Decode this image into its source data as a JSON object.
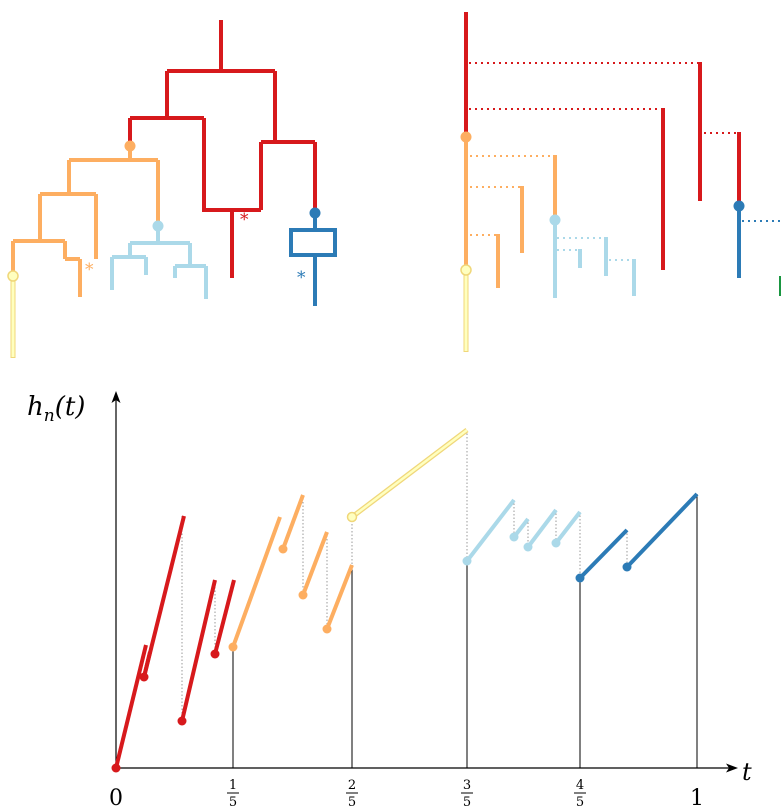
{
  "colors": {
    "red": "#d7191c",
    "orange": "#fdae61",
    "lightblue": "#abd9e9",
    "blue": "#2c7bb6",
    "yellow": "#ffffbf",
    "yellow_stroke": "#f0d77a",
    "green": "#1a9641",
    "axis": "#000000",
    "guide": "#999999"
  },
  "marks": {
    "star_red": "*",
    "star_orange": "*",
    "star_blue": "*"
  },
  "graph": {
    "ylabel": "h",
    "ylabel_sub": "n",
    "ylabel_arg": "(t)",
    "xlabel": "t",
    "tick_zero": "0",
    "tick_one": "1",
    "fractions": [
      {
        "num": "1",
        "den": "5"
      },
      {
        "num": "2",
        "den": "5"
      },
      {
        "num": "3",
        "den": "5"
      },
      {
        "num": "4",
        "den": "5"
      }
    ]
  }
}
